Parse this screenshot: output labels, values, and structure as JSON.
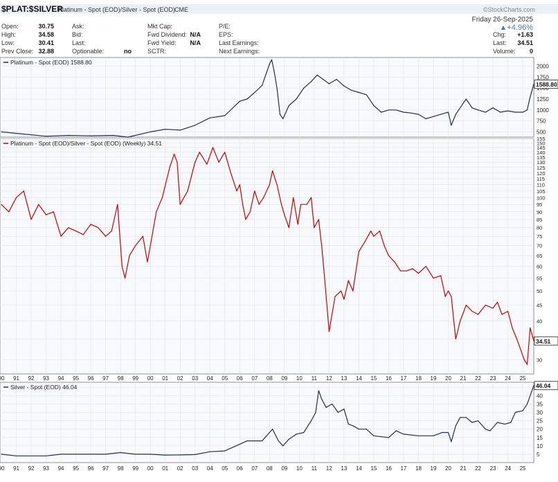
{
  "header": {
    "symbol": "$PLAT:$SILVER",
    "description": "Platinum - Spot (EOD)/Silver - Spot (EOD)",
    "exchange": "CME",
    "watermark": "©StockCharts.com",
    "date": "Friday 26-Sep-2025",
    "change_pct": "▲+4.96%",
    "fields": [
      {
        "label": "Open:",
        "value": "30.75"
      },
      {
        "label": "High:",
        "value": "34.58"
      },
      {
        "label": "Low:",
        "value": "30.41"
      },
      {
        "label": "Prev Close:",
        "value": "32.88"
      },
      {
        "label": "Ask:",
        "value": ""
      },
      {
        "label": "Bid:",
        "value": ""
      },
      {
        "label": "Last:",
        "value": ""
      },
      {
        "label": "Optionable:",
        "value": "no"
      },
      {
        "label": "Mkt Cap:",
        "value": ""
      },
      {
        "label": "Fwd Dividend:",
        "value": "N/A"
      },
      {
        "label": "Fwd Yield:",
        "value": "N/A"
      },
      {
        "label": "SCTR:",
        "value": ""
      },
      {
        "label": "P/E:",
        "value": ""
      },
      {
        "label": "EPS:",
        "value": ""
      },
      {
        "label": "Last Earnings:",
        "value": ""
      },
      {
        "label": "Next Earnings:",
        "value": ""
      },
      {
        "label": "Chg:",
        "value": "+1.63"
      },
      {
        "label": "Last:",
        "value": "34.51"
      },
      {
        "label": "Volume:",
        "value": "0"
      }
    ]
  },
  "colors": {
    "blue_line": "#1f2f55",
    "red_line": "#cc0000",
    "dark_segment": "#222222",
    "grid": "#e3e3e3",
    "panel_bg": "#f7f9fc",
    "last_tag_bg": "#ffffff"
  },
  "chart_data": [
    {
      "type": "line",
      "title": "Platinum - Spot (EOD) 1588.80",
      "last_value_label": "1588.80",
      "y_ticks": [
        500,
        750,
        1000,
        1250,
        1500,
        1750,
        2000
      ],
      "ylim": [
        380,
        2200
      ],
      "x": [
        1990,
        1991.5,
        1993,
        1994.5,
        1996,
        1997.5,
        1998.5,
        1999,
        2000,
        2001,
        2002,
        2003,
        2004,
        2005,
        2006,
        2006.5,
        2007,
        2007.5,
        2008.0,
        2008.15,
        2008.3,
        2008.5,
        2008.7,
        2008.9,
        2009.3,
        2009.8,
        2010.3,
        2010.8,
        2011.2,
        2011.6,
        2012.0,
        2012.5,
        2013.0,
        2013.5,
        2014.0,
        2014.5,
        2015.0,
        2015.5,
        2016.0,
        2016.5,
        2017.0,
        2017.5,
        2018.0,
        2018.5,
        2019.0,
        2019.5,
        2020.0,
        2020.2,
        2020.5,
        2021.0,
        2021.2,
        2021.6,
        2022.0,
        2022.5,
        2023.0,
        2023.5,
        2024.0,
        2024.5,
        2025.0,
        2025.3,
        2025.5,
        2025.74
      ],
      "values": [
        500,
        450,
        400,
        420,
        410,
        420,
        380,
        420,
        500,
        560,
        540,
        650,
        820,
        870,
        1200,
        1250,
        1400,
        1560,
        2050,
        2150,
        1900,
        1500,
        900,
        800,
        1100,
        1250,
        1500,
        1650,
        1800,
        1700,
        1600,
        1700,
        1550,
        1450,
        1400,
        1350,
        1100,
        950,
        1000,
        1000,
        950,
        930,
        900,
        800,
        850,
        900,
        950,
        650,
        900,
        1150,
        1250,
        1050,
        1000,
        950,
        1050,
        950,
        980,
        950,
        950,
        1000,
        1300,
        1588.8
      ]
    },
    {
      "type": "line",
      "title": "Platinum - Spot (EOD)/Silver - Spot (EOD) (Weekly) 34.51",
      "last_value_label": "34.51",
      "scale": "log",
      "y_ticks": [
        30,
        35,
        40,
        45,
        50,
        55,
        60,
        65,
        70,
        75,
        80,
        85,
        90,
        95,
        100,
        105,
        110,
        115,
        120,
        125,
        130,
        135,
        140,
        145,
        150,
        155
      ],
      "ylim": [
        27,
        155
      ],
      "x": [
        1990.0,
        1990.5,
        1991.0,
        1991.5,
        1992.0,
        1992.5,
        1993.0,
        1993.5,
        1994.0,
        1994.5,
        1995.0,
        1995.5,
        1996.0,
        1996.5,
        1997.0,
        1997.4,
        1997.8,
        1998.1,
        1998.3,
        1998.6,
        1999.0,
        1999.5,
        1999.8,
        2000.0,
        2000.4,
        2000.8,
        2001.3,
        2001.6,
        2001.8,
        2002.0,
        2002.5,
        2003.0,
        2003.3,
        2003.8,
        2004.2,
        2004.6,
        2005.0,
        2005.4,
        2005.8,
        2006.0,
        2006.2,
        2006.4,
        2006.7,
        2007.0,
        2007.3,
        2007.6,
        2008.0,
        2008.2,
        2008.5,
        2008.8,
        2009.0,
        2009.3,
        2009.6,
        2009.9,
        2010.1,
        2010.5,
        2010.8,
        2011.0,
        2011.3,
        2011.5,
        2011.7,
        2012.0,
        2012.4,
        2012.8,
        2013.0,
        2013.3,
        2013.6,
        2014.0,
        2014.4,
        2014.8,
        2015.0,
        2015.4,
        2015.7,
        2016.0,
        2016.4,
        2016.8,
        2017.2,
        2017.6,
        2018.0,
        2018.5,
        2019.0,
        2019.5,
        2019.8,
        2020.0,
        2020.2,
        2020.5,
        2020.8,
        2021.2,
        2021.6,
        2022.0,
        2022.5,
        2023.0,
        2023.3,
        2023.6,
        2024.0,
        2024.3,
        2024.6,
        2024.9,
        2025.1,
        2025.3,
        2025.5,
        2025.74
      ],
      "values": [
        95,
        90,
        100,
        105,
        85,
        95,
        88,
        90,
        75,
        80,
        78,
        76,
        82,
        80,
        75,
        78,
        95,
        60,
        55,
        65,
        70,
        75,
        62,
        70,
        90,
        100,
        125,
        138,
        130,
        95,
        105,
        130,
        140,
        128,
        145,
        130,
        140,
        120,
        105,
        110,
        95,
        85,
        90,
        105,
        95,
        100,
        110,
        122,
        110,
        95,
        88,
        80,
        100,
        82,
        95,
        95,
        100,
        80,
        85,
        70,
        55,
        37,
        48,
        50,
        47,
        54,
        50,
        67,
        72,
        78,
        75,
        78,
        70,
        65,
        62,
        58,
        58,
        59,
        57,
        60,
        55,
        56,
        48,
        50,
        48,
        35,
        40,
        45,
        43,
        42,
        45,
        44,
        46,
        42,
        43,
        38,
        35,
        32,
        30,
        29,
        38,
        34.51
      ]
    },
    {
      "type": "line",
      "title": "Silver - Spot (EOD) 46.04",
      "last_value_label": "46.04",
      "y_ticks": [
        5,
        10,
        15,
        20,
        25,
        30,
        35,
        40,
        45
      ],
      "ylim": [
        0,
        48
      ],
      "x": [
        1990,
        1991,
        1993,
        1994,
        1995,
        1997,
        1998,
        1999,
        2000,
        2001,
        2002,
        2003,
        2004,
        2005,
        2006,
        2006.5,
        2007,
        2007.5,
        2008.0,
        2008.2,
        2008.6,
        2008.9,
        2009.3,
        2009.8,
        2010.3,
        2010.8,
        2011.1,
        2011.3,
        2011.5,
        2011.8,
        2012.2,
        2012.6,
        2013.0,
        2013.3,
        2013.6,
        2014.0,
        2014.5,
        2015.0,
        2016.0,
        2016.5,
        2017.0,
        2018.0,
        2019.0,
        2019.6,
        2020.0,
        2020.2,
        2020.5,
        2020.8,
        2021.2,
        2021.6,
        2022.0,
        2022.5,
        2022.8,
        2023.3,
        2023.8,
        2024.2,
        2024.5,
        2025.0,
        2025.3,
        2025.74
      ],
      "values": [
        5.0,
        4.0,
        4.0,
        5.0,
        5.0,
        5.0,
        6.0,
        5.0,
        5.0,
        4.5,
        4.6,
        4.8,
        6.5,
        7.0,
        11.0,
        13.0,
        13.0,
        13.0,
        18.0,
        20.0,
        13.0,
        10.0,
        14.0,
        17.0,
        18.0,
        25.0,
        30.0,
        43.0,
        38.0,
        33.0,
        35.0,
        30.0,
        32.0,
        23.0,
        22.0,
        20.0,
        20.0,
        16.0,
        15.0,
        19.0,
        17.0,
        16.0,
        16.0,
        18.0,
        18.0,
        12.5,
        22.0,
        27.0,
        27.0,
        24.0,
        25.0,
        20.0,
        19.0,
        24.0,
        23.0,
        24.0,
        30.0,
        31.0,
        35.0,
        46.04
      ]
    }
  ],
  "x_axis_labels": [
    "90",
    "91",
    "92",
    "93",
    "94",
    "95",
    "96",
    "97",
    "98",
    "99",
    "00",
    "01",
    "02",
    "03",
    "04",
    "05",
    "06",
    "07",
    "08",
    "09",
    "10",
    "11",
    "12",
    "13",
    "14",
    "15",
    "16",
    "17",
    "18",
    "19",
    "20",
    "21",
    "22",
    "23",
    "24",
    "25"
  ]
}
